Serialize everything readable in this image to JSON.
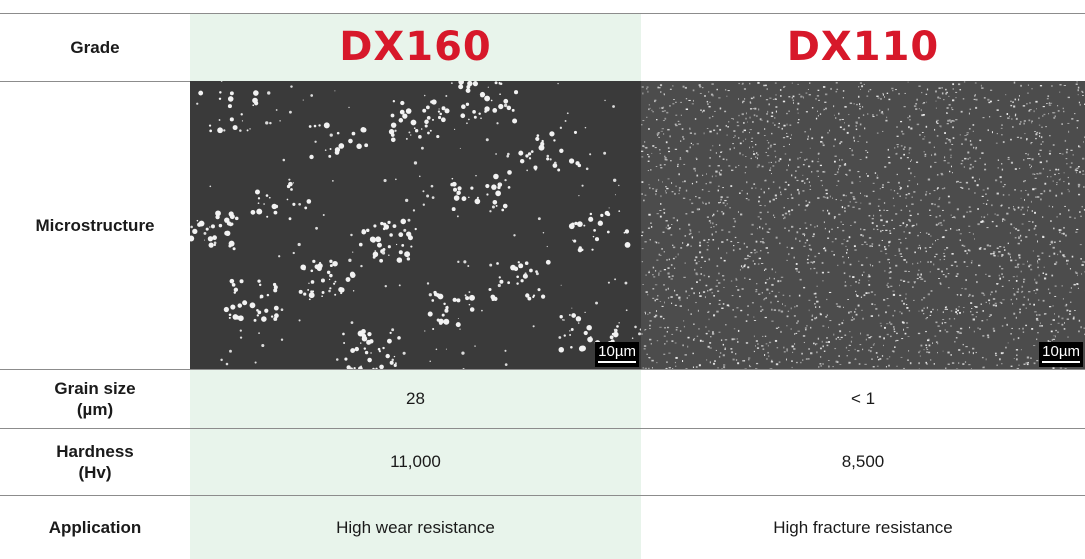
{
  "rows": {
    "grade": {
      "label": "Grade",
      "dx160": "DX160",
      "dx110": "DX110"
    },
    "microstructure": {
      "label": "Microstructure",
      "scale_dx160": "10µm",
      "scale_dx110": "10µm"
    },
    "grain_size": {
      "label_line1": "Grain size",
      "label_line2": "(µm)",
      "dx160": "28",
      "dx110": "< 1"
    },
    "hardness": {
      "label_line1": "Hardness",
      "label_line2": "(Hv)",
      "dx160": "11,000",
      "dx110": "8,500"
    },
    "application": {
      "label": "Application",
      "dx160": "High wear resistance",
      "dx110": "High fracture resistance"
    }
  },
  "colors": {
    "logo_red": "#d7182a",
    "highlight_column": "#e8f4eb",
    "rule": "#8c8c8c"
  }
}
